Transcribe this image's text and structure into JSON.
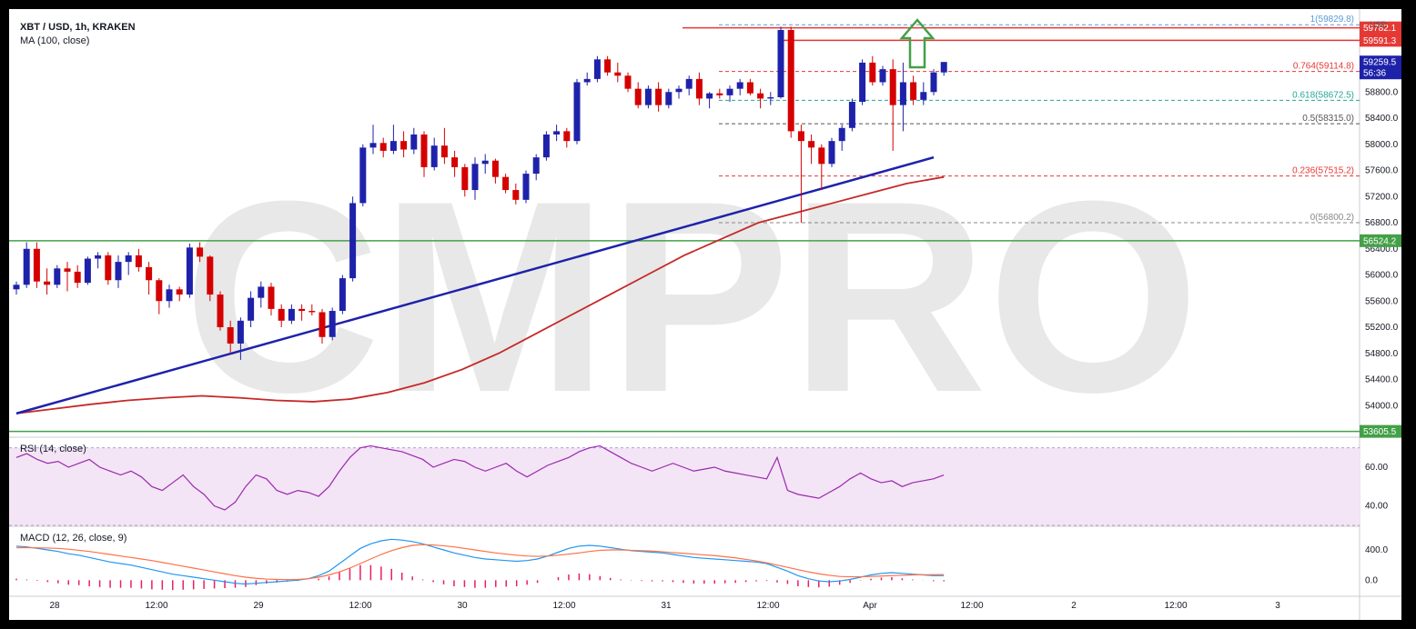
{
  "header": {
    "symbol": "XBT / USD, 1h, KRAKEN",
    "ma_label": "MA (100, close)",
    "currency": "USD",
    "watermark": "CMPRO"
  },
  "price_axis_ticks": [
    "54000.0",
    "54400.0",
    "54800.0",
    "55200.0",
    "55600.0",
    "56000.0",
    "56400.0",
    "56800.0",
    "57200.0",
    "57600.0",
    "58000.0",
    "58400.0",
    "58800.0"
  ],
  "price_tags": [
    {
      "label": "59782.1",
      "value": 59782.1,
      "color": "#e53935"
    },
    {
      "label": "59591.3",
      "value": 59591.3,
      "color": "#e53935"
    },
    {
      "label": "59259.5",
      "value": 59259.5,
      "color": "#1e22aa"
    },
    {
      "label": "56:36",
      "value": 59120,
      "color": "#1e22aa"
    },
    {
      "label": "56524.2",
      "value": 56524.2,
      "color": "#43a047"
    },
    {
      "label": "53605.5",
      "value": 53605.5,
      "color": "#43a047"
    }
  ],
  "time_axis_labels": [
    "28",
    "12:00",
    "29",
    "12:00",
    "30",
    "12:00",
    "31",
    "12:00",
    "Apr",
    "12:00",
    "2",
    "12:00",
    "3"
  ],
  "fibonacci": [
    {
      "label": "1(59829.8)",
      "value": 59829.8,
      "color": "#5b9bd5"
    },
    {
      "label": "0.764(59114.8)",
      "value": 59114.8,
      "color": "#e53935"
    },
    {
      "label": "0.618(58672.5)",
      "value": 58672.5,
      "color": "#26a69a"
    },
    {
      "label": "0.5(58315.0)",
      "value": 58315.0,
      "color": "#555555"
    },
    {
      "label": "0.236(57515.2)",
      "value": 57515.2,
      "color": "#e53935"
    },
    {
      "label": "0(56800.2)",
      "value": 56800.2,
      "color": "#888888"
    }
  ],
  "rsi": {
    "label": "RSI (14, close)",
    "ticks": [
      "60.00",
      "40.00"
    ]
  },
  "macd": {
    "label": "MACD (12, 26, close, 9)",
    "ticks": [
      "400.0",
      "0.0"
    ]
  },
  "colors": {
    "up": "#1e22aa",
    "down": "#d50000",
    "ma": "#c62828",
    "trend": "#1e22aa",
    "support": "#43a047",
    "resistance": "#e53935",
    "rsi": "#9c27b0",
    "macd": "#2196f3",
    "signal": "#ff7043",
    "hist": "#e91e63",
    "arrow": "#43a047"
  },
  "chart_data": [
    {
      "type": "candlestick",
      "title": "XBT / USD, 1h, KRAKEN",
      "ylim": [
        53600,
        60000
      ],
      "x_ticks": [
        "28",
        "12:00",
        "29",
        "12:00",
        "30",
        "12:00",
        "31",
        "12:00",
        "Apr",
        "12:00",
        "2",
        "12:00",
        "3"
      ],
      "ohlc": [
        [
          55780,
          55900,
          55700,
          55850
        ],
        [
          55850,
          56500,
          55800,
          56400
        ],
        [
          56400,
          56500,
          55800,
          55900
        ],
        [
          55900,
          56100,
          55700,
          55850
        ],
        [
          55850,
          56150,
          55800,
          56100
        ],
        [
          56100,
          56200,
          55750,
          56050
        ],
        [
          56050,
          56150,
          55800,
          55880
        ],
        [
          55880,
          56280,
          55850,
          56250
        ],
        [
          56250,
          56350,
          56100,
          56300
        ],
        [
          56300,
          56350,
          55850,
          55920
        ],
        [
          55920,
          56300,
          55800,
          56200
        ],
        [
          56200,
          56350,
          56000,
          56300
        ],
        [
          56300,
          56400,
          56050,
          56120
        ],
        [
          56120,
          56200,
          55700,
          55920
        ],
        [
          55920,
          55950,
          55400,
          55600
        ],
        [
          55600,
          55850,
          55500,
          55780
        ],
        [
          55780,
          55820,
          55600,
          55700
        ],
        [
          55700,
          56480,
          55650,
          56420
        ],
        [
          56420,
          56500,
          56200,
          56280
        ],
        [
          56280,
          56300,
          55600,
          55700
        ],
        [
          55700,
          55750,
          55150,
          55200
        ],
        [
          55200,
          55300,
          54800,
          54950
        ],
        [
          54950,
          55350,
          54700,
          55300
        ],
        [
          55300,
          55750,
          55200,
          55650
        ],
        [
          55650,
          55900,
          55500,
          55820
        ],
        [
          55820,
          55880,
          55380,
          55480
        ],
        [
          55480,
          55550,
          55200,
          55300
        ],
        [
          55300,
          55550,
          55250,
          55480
        ],
        [
          55480,
          55550,
          55300,
          55450
        ],
        [
          55450,
          55550,
          55380,
          55430
        ],
        [
          55430,
          55480,
          54950,
          55050
        ],
        [
          55050,
          55500,
          55000,
          55450
        ],
        [
          55450,
          56000,
          55400,
          55950
        ],
        [
          55950,
          57200,
          55900,
          57100
        ],
        [
          57100,
          58000,
          57050,
          57950
        ],
        [
          57950,
          58300,
          57850,
          58020
        ],
        [
          58020,
          58100,
          57800,
          57900
        ],
        [
          57900,
          58300,
          57850,
          58050
        ],
        [
          58050,
          58200,
          57800,
          57920
        ],
        [
          57920,
          58250,
          57850,
          58150
        ],
        [
          58150,
          58200,
          57500,
          57650
        ],
        [
          57650,
          58100,
          57600,
          57980
        ],
        [
          57980,
          58250,
          57700,
          57800
        ],
        [
          57800,
          57900,
          57500,
          57650
        ],
        [
          57650,
          57700,
          57200,
          57300
        ],
        [
          57300,
          57800,
          57150,
          57700
        ],
        [
          57700,
          57850,
          57550,
          57750
        ],
        [
          57750,
          57780,
          57400,
          57500
        ],
        [
          57500,
          57550,
          57250,
          57300
        ],
        [
          57300,
          57400,
          57080,
          57150
        ],
        [
          57150,
          57600,
          57100,
          57550
        ],
        [
          57550,
          57850,
          57450,
          57800
        ],
        [
          57800,
          58200,
          57750,
          58150
        ],
        [
          58150,
          58300,
          58050,
          58200
        ],
        [
          58200,
          58250,
          57950,
          58050
        ],
        [
          58050,
          59000,
          58000,
          58950
        ],
        [
          58950,
          59100,
          58900,
          59000
        ],
        [
          59000,
          59350,
          58950,
          59300
        ],
        [
          59300,
          59350,
          59050,
          59100
        ],
        [
          59100,
          59250,
          58950,
          59050
        ],
        [
          59050,
          59100,
          58800,
          58850
        ],
        [
          58850,
          58950,
          58550,
          58600
        ],
        [
          58600,
          58900,
          58550,
          58850
        ],
        [
          58850,
          58950,
          58500,
          58600
        ],
        [
          58600,
          58850,
          58550,
          58800
        ],
        [
          58800,
          58900,
          58700,
          58850
        ],
        [
          58850,
          59050,
          58750,
          59000
        ],
        [
          59000,
          59100,
          58600,
          58700
        ],
        [
          58700,
          58800,
          58550,
          58780
        ],
        [
          58780,
          58850,
          58700,
          58750
        ],
        [
          58750,
          58900,
          58650,
          58850
        ],
        [
          58850,
          59000,
          58750,
          58950
        ],
        [
          58950,
          59000,
          58750,
          58780
        ],
        [
          58780,
          58850,
          58550,
          58700
        ],
        [
          58700,
          58800,
          58600,
          58720
        ],
        [
          58720,
          59800,
          58700,
          59750
        ],
        [
          59750,
          59800,
          58100,
          58200
        ],
        [
          58200,
          58300,
          56800,
          58050
        ],
        [
          58050,
          58150,
          57700,
          57950
        ],
        [
          57950,
          58000,
          57300,
          57700
        ],
        [
          57700,
          58100,
          57650,
          58050
        ],
        [
          58050,
          58300,
          57900,
          58250
        ],
        [
          58250,
          58700,
          58200,
          58650
        ],
        [
          58650,
          59300,
          58600,
          59250
        ],
        [
          59250,
          59350,
          58900,
          58950
        ],
        [
          58950,
          59200,
          58900,
          59150
        ],
        [
          59150,
          59300,
          57900,
          58600
        ],
        [
          58600,
          59250,
          58200,
          58950
        ],
        [
          58950,
          59050,
          58600,
          58680
        ],
        [
          58680,
          58950,
          58600,
          58800
        ],
        [
          58800,
          59150,
          58750,
          59100
        ],
        [
          59100,
          59200,
          59050,
          59260
        ]
      ],
      "ma_100": [
        53880,
        53950,
        54020,
        54080,
        54120,
        54150,
        54120,
        54080,
        54060,
        54100,
        54200,
        54350,
        54550,
        54800,
        55100,
        55400,
        55700,
        56000,
        56300,
        56550,
        56800,
        56950,
        57100,
        57250,
        57400,
        57500
      ],
      "trendline": [
        [
          0,
          53880
        ],
        [
          90,
          57800
        ]
      ],
      "resistance": [
        59782.1,
        59591.3
      ],
      "support": [
        56524.2,
        53605.5
      ]
    },
    {
      "type": "line",
      "title": "RSI (14, close)",
      "ylim": [
        30,
        75
      ],
      "series": [
        {
          "values": [
            65,
            67,
            64,
            62,
            63,
            60,
            62,
            64,
            60,
            58,
            56,
            58,
            55,
            50,
            48,
            52,
            56,
            50,
            46,
            40,
            38,
            42,
            50,
            56,
            54,
            48,
            46,
            48,
            47,
            45,
            50,
            58,
            65,
            70,
            71,
            70,
            69,
            68,
            66,
            64,
            60,
            62,
            64,
            63,
            60,
            58,
            60,
            62,
            58,
            55,
            58,
            61,
            63,
            65,
            68,
            70,
            71,
            68,
            65,
            62,
            60,
            58,
            60,
            62,
            60,
            58,
            59,
            60,
            58,
            57,
            56,
            55,
            54,
            65,
            48,
            46,
            45,
            44,
            47,
            50,
            54,
            57,
            54,
            52,
            53,
            50,
            52,
            53,
            54,
            56
          ]
        }
      ]
    },
    {
      "type": "line",
      "title": "MACD (12, 26, close, 9)",
      "ylim": [
        -200,
        700
      ],
      "series": [
        {
          "values": [
            450,
            440,
            420,
            400,
            380,
            350,
            330,
            300,
            270,
            240,
            220,
            200,
            170,
            140,
            110,
            80,
            60,
            40,
            20,
            0,
            -20,
            -40,
            -50,
            -40,
            -30,
            -20,
            -10,
            0,
            20,
            60,
            120,
            220,
            320,
            420,
            480,
            520,
            540,
            530,
            510,
            480,
            440,
            400,
            360,
            330,
            300,
            280,
            270,
            260,
            250,
            260,
            280,
            320,
            370,
            420,
            450,
            460,
            450,
            430,
            410,
            390,
            380,
            370,
            360,
            340,
            320,
            300,
            290,
            280,
            270,
            260,
            250,
            240,
            220,
            170,
            120,
            60,
            20,
            -10,
            -20,
            -10,
            10,
            40,
            70,
            90,
            100,
            90,
            80,
            70,
            60,
            60
          ]
        },
        {
          "values": [
            430,
            430,
            428,
            425,
            420,
            410,
            395,
            380,
            360,
            340,
            320,
            300,
            280,
            260,
            235,
            210,
            185,
            160,
            135,
            110,
            85,
            60,
            40,
            25,
            15,
            10,
            8,
            10,
            20,
            40,
            70,
            110,
            160,
            220,
            280,
            340,
            390,
            430,
            460,
            470,
            465,
            455,
            440,
            420,
            400,
            380,
            360,
            345,
            330,
            320,
            315,
            320,
            330,
            345,
            360,
            380,
            395,
            400,
            400,
            395,
            390,
            385,
            375,
            365,
            355,
            345,
            335,
            325,
            310,
            295,
            275,
            255,
            230,
            200,
            170,
            140,
            110,
            85,
            65,
            50,
            45,
            45,
            50,
            55,
            60,
            65,
            70,
            72,
            73,
            75
          ]
        }
      ]
    }
  ]
}
